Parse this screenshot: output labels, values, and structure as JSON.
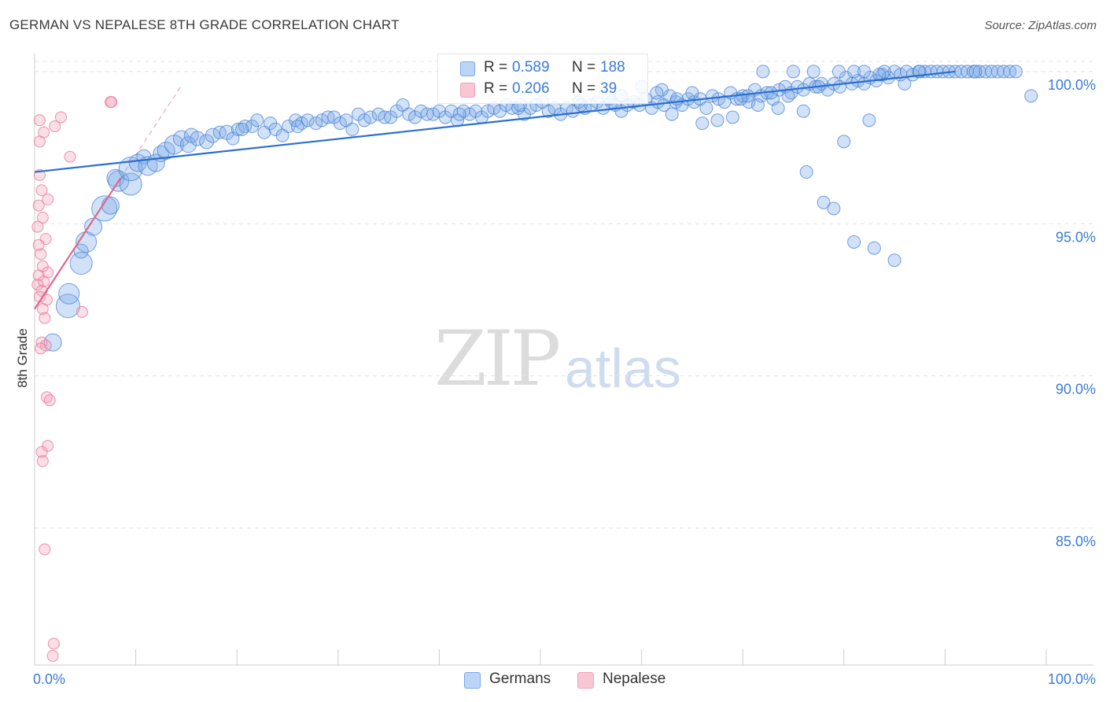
{
  "title": "GERMAN VS NEPALESE 8TH GRADE CORRELATION CHART",
  "source": "Source: ZipAtlas.com",
  "watermark": {
    "left": "ZIP",
    "right": "atlas"
  },
  "legend": {
    "germans": {
      "r_label": "R =",
      "r_value": "0.589",
      "n_label": "N =",
      "n_value": "188"
    },
    "nepalese": {
      "r_label": "R =",
      "r_value": "0.206",
      "n_label": "N =",
      "n_value": "39"
    }
  },
  "bottom_legend": {
    "germans": "Germans",
    "nepalese": "Nepalese"
  },
  "colors": {
    "blue": "#7aa9e8",
    "blue_line": "#2a6fcf",
    "pink": "#f0a3b9",
    "pink_line": "#e0668e",
    "tick_label": "#3a7bd5"
  },
  "chart_data": {
    "type": "scatter",
    "title": "GERMAN VS NEPALESE 8TH GRADE CORRELATION CHART",
    "xlabel": "",
    "ylabel": "8th Grade",
    "xlim": [
      0,
      100
    ],
    "ylim": [
      80.5,
      100.8
    ],
    "x_tick_labels": {
      "left": "0.0%",
      "right": "100.0%"
    },
    "y_ticks": [
      {
        "value": 100,
        "label": "100.0%"
      },
      {
        "value": 95,
        "label": "95.0%"
      },
      {
        "value": 90,
        "label": "90.0%"
      },
      {
        "value": 85,
        "label": "85.0%"
      }
    ],
    "series": [
      {
        "name": "Germans",
        "trend": {
          "x": [
            0,
            91
          ],
          "y": [
            96.7,
            100.0
          ]
        },
        "points": [
          [
            1.8,
            91.1,
            11
          ],
          [
            3.3,
            92.3,
            15
          ],
          [
            3.4,
            92.7,
            13
          ],
          [
            4.6,
            93.7,
            14
          ],
          [
            4.6,
            94.1,
            9
          ],
          [
            5.1,
            94.4,
            13
          ],
          [
            5.8,
            94.9,
            11
          ],
          [
            6.9,
            95.5,
            16
          ],
          [
            7.5,
            95.6,
            11
          ],
          [
            8.0,
            96.5,
            11
          ],
          [
            8.3,
            96.4,
            13
          ],
          [
            9.5,
            96.3,
            14
          ],
          [
            9.5,
            96.8,
            15
          ],
          [
            10.2,
            97.0,
            11
          ],
          [
            10.8,
            97.2,
            9
          ],
          [
            11.2,
            96.9,
            12
          ],
          [
            12.0,
            97.0,
            11
          ],
          [
            12.5,
            97.3,
            10
          ],
          [
            13.0,
            97.4,
            11
          ],
          [
            13.8,
            97.6,
            12
          ],
          [
            14.5,
            97.8,
            10
          ],
          [
            15.2,
            97.6,
            10
          ],
          [
            15.5,
            97.9,
            9
          ],
          [
            16.1,
            97.8,
            9
          ],
          [
            17.0,
            97.7,
            9
          ],
          [
            17.6,
            97.9,
            9
          ],
          [
            18.3,
            98.0,
            8
          ],
          [
            19.0,
            98.0,
            9
          ],
          [
            19.6,
            97.8,
            8
          ],
          [
            20.1,
            98.1,
            8
          ],
          [
            20.8,
            98.2,
            8
          ],
          [
            21.5,
            98.2,
            8
          ],
          [
            22.0,
            98.4,
            8
          ],
          [
            22.7,
            98.0,
            8
          ],
          [
            23.3,
            98.3,
            8
          ],
          [
            23.8,
            98.1,
            8
          ],
          [
            24.5,
            97.9,
            8
          ],
          [
            25.1,
            98.2,
            8
          ],
          [
            25.8,
            98.4,
            8
          ],
          [
            26.4,
            98.3,
            8
          ],
          [
            27.0,
            98.4,
            8
          ],
          [
            27.8,
            98.3,
            8
          ],
          [
            28.4,
            98.4,
            8
          ],
          [
            29.0,
            98.5,
            8
          ],
          [
            29.6,
            98.5,
            8
          ],
          [
            30.2,
            98.3,
            8
          ],
          [
            30.8,
            98.4,
            8
          ],
          [
            31.4,
            98.1,
            8
          ],
          [
            32.0,
            98.6,
            8
          ],
          [
            32.6,
            98.4,
            8
          ],
          [
            33.2,
            98.5,
            8
          ],
          [
            34.0,
            98.6,
            8
          ],
          [
            34.6,
            98.5,
            8
          ],
          [
            35.2,
            98.5,
            8
          ],
          [
            35.8,
            98.7,
            8
          ],
          [
            36.4,
            98.9,
            8
          ],
          [
            37.0,
            98.6,
            8
          ],
          [
            37.6,
            98.5,
            8
          ],
          [
            38.2,
            98.7,
            8
          ],
          [
            38.8,
            98.6,
            8
          ],
          [
            39.4,
            98.6,
            8
          ],
          [
            40.0,
            98.7,
            8
          ],
          [
            40.6,
            98.5,
            8
          ],
          [
            41.2,
            98.7,
            8
          ],
          [
            41.8,
            98.4,
            8
          ],
          [
            42.4,
            98.7,
            8
          ],
          [
            43.0,
            98.6,
            8
          ],
          [
            43.6,
            98.7,
            8
          ],
          [
            44.2,
            98.5,
            8
          ],
          [
            44.8,
            98.7,
            8
          ],
          [
            45.4,
            98.8,
            8
          ],
          [
            46.0,
            98.7,
            8
          ],
          [
            46.6,
            98.9,
            8
          ],
          [
            47.2,
            98.8,
            8
          ],
          [
            47.8,
            98.8,
            8
          ],
          [
            48.4,
            98.6,
            8
          ],
          [
            49.0,
            98.8,
            8
          ],
          [
            49.6,
            98.9,
            8
          ],
          [
            50.2,
            99.0,
            8
          ],
          [
            50.8,
            98.7,
            8
          ],
          [
            51.4,
            98.8,
            8
          ],
          [
            52.0,
            98.6,
            8
          ],
          [
            52.6,
            98.8,
            8
          ],
          [
            53.2,
            98.7,
            8
          ],
          [
            53.8,
            99.0,
            8
          ],
          [
            54.4,
            98.8,
            8
          ],
          [
            55.0,
            98.9,
            8
          ],
          [
            55.6,
            99.0,
            8
          ],
          [
            56.2,
            98.8,
            8
          ],
          [
            56.8,
            99.1,
            8
          ],
          [
            57.4,
            98.9,
            8
          ],
          [
            58.0,
            98.7,
            8
          ],
          [
            58.6,
            98.9,
            8
          ],
          [
            59.2,
            99.0,
            8
          ],
          [
            59.8,
            98.9,
            8
          ],
          [
            60.4,
            99.1,
            8
          ],
          [
            61.0,
            98.8,
            8
          ],
          [
            61.6,
            99.0,
            8
          ],
          [
            62.2,
            98.9,
            8
          ],
          [
            62.8,
            99.2,
            8
          ],
          [
            63.4,
            99.0,
            8
          ],
          [
            64.0,
            98.9,
            8
          ],
          [
            64.6,
            99.1,
            8
          ],
          [
            65.2,
            99.0,
            8
          ],
          [
            65.8,
            99.1,
            8
          ],
          [
            66.4,
            98.8,
            8
          ],
          [
            67.0,
            99.2,
            8
          ],
          [
            67.6,
            99.1,
            8
          ],
          [
            68.2,
            99.0,
            8
          ],
          [
            68.8,
            99.3,
            8
          ],
          [
            69.4,
            99.1,
            8
          ],
          [
            70.0,
            99.2,
            8
          ],
          [
            70.6,
            99.0,
            8
          ],
          [
            71.2,
            99.4,
            8
          ],
          [
            71.8,
            99.2,
            8
          ],
          [
            72.4,
            99.3,
            8
          ],
          [
            73.0,
            99.1,
            8
          ],
          [
            73.6,
            99.4,
            8
          ],
          [
            74.2,
            99.5,
            8
          ],
          [
            74.8,
            99.3,
            8
          ],
          [
            75.4,
            99.5,
            8
          ],
          [
            76.0,
            99.4,
            8
          ],
          [
            76.6,
            99.6,
            8
          ],
          [
            77.2,
            99.5,
            8
          ],
          [
            77.8,
            99.6,
            8
          ],
          [
            78.4,
            99.4,
            8
          ],
          [
            79.0,
            99.6,
            8
          ],
          [
            79.6,
            99.5,
            8
          ],
          [
            80.2,
            99.8,
            8
          ],
          [
            80.8,
            99.6,
            8
          ],
          [
            81.4,
            99.7,
            8
          ],
          [
            82.0,
            99.6,
            8
          ],
          [
            82.6,
            99.8,
            8
          ],
          [
            83.2,
            99.7,
            8
          ],
          [
            83.8,
            99.9,
            8
          ],
          [
            84.4,
            99.8,
            8
          ],
          [
            85.0,
            100.0,
            8
          ],
          [
            85.6,
            99.9,
            8
          ],
          [
            86.2,
            100.0,
            8
          ],
          [
            86.8,
            99.9,
            8
          ],
          [
            87.4,
            100.0,
            8
          ],
          [
            88.0,
            100.0,
            8
          ],
          [
            88.6,
            100.0,
            8
          ],
          [
            89.2,
            100.0,
            8
          ],
          [
            89.8,
            100.0,
            8
          ],
          [
            90.4,
            100.0,
            8
          ],
          [
            91.0,
            100.0,
            8
          ],
          [
            91.6,
            100.0,
            8
          ],
          [
            92.2,
            100.0,
            8
          ],
          [
            92.8,
            100.0,
            8
          ],
          [
            93.4,
            100.0,
            8
          ],
          [
            94.0,
            100.0,
            8
          ],
          [
            94.6,
            100.0,
            8
          ],
          [
            95.2,
            100.0,
            8
          ],
          [
            95.8,
            100.0,
            8
          ],
          [
            96.4,
            100.0,
            8
          ],
          [
            97.0,
            100.0,
            8
          ],
          [
            72.0,
            100.0,
            8
          ],
          [
            75.0,
            100.0,
            8
          ],
          [
            77.0,
            100.0,
            8
          ],
          [
            79.5,
            100.0,
            8
          ],
          [
            81.0,
            100.0,
            8
          ],
          [
            82.0,
            100.0,
            8
          ],
          [
            60.0,
            99.5,
            8
          ],
          [
            62.0,
            99.4,
            8
          ],
          [
            58.0,
            99.2,
            8
          ],
          [
            98.5,
            99.2,
            8
          ],
          [
            86.0,
            99.6,
            8
          ],
          [
            63.0,
            98.6,
            8
          ],
          [
            66.0,
            98.3,
            8
          ],
          [
            67.5,
            98.4,
            8
          ],
          [
            69.0,
            98.5,
            8
          ],
          [
            71.5,
            98.9,
            8
          ],
          [
            73.5,
            98.8,
            8
          ],
          [
            74.5,
            99.2,
            8
          ],
          [
            76.0,
            98.7,
            8
          ],
          [
            82.5,
            98.4,
            8
          ],
          [
            76.3,
            96.7,
            8
          ],
          [
            78.0,
            95.7,
            8
          ],
          [
            79.0,
            95.5,
            8
          ],
          [
            81.0,
            94.4,
            8
          ],
          [
            83.0,
            94.2,
            8
          ],
          [
            85.0,
            93.8,
            8
          ],
          [
            80.0,
            97.7,
            8
          ],
          [
            65.0,
            99.3,
            8
          ],
          [
            61.5,
            99.3,
            8
          ],
          [
            70.5,
            99.2,
            8
          ],
          [
            72.8,
            99.3,
            8
          ],
          [
            84.0,
            100.0,
            8
          ],
          [
            20.5,
            98.1,
            8
          ],
          [
            26.0,
            98.2,
            8
          ],
          [
            42.0,
            98.6,
            8
          ],
          [
            48.0,
            98.9,
            8
          ],
          [
            54.0,
            98.9,
            8
          ],
          [
            57.0,
            99.0,
            8
          ],
          [
            63.5,
            99.1,
            8
          ],
          [
            69.8,
            99.1,
            8
          ],
          [
            77.5,
            99.5,
            8
          ],
          [
            83.5,
            99.9,
            8
          ],
          [
            87.5,
            100.0,
            8
          ],
          [
            93.0,
            100.0,
            8
          ]
        ]
      },
      {
        "name": "Nepalese",
        "trend": {
          "x": [
            0,
            8.5
          ],
          "y": [
            92.2,
            96.5
          ]
        },
        "points": [
          [
            0.5,
            98.4
          ],
          [
            0.9,
            98.0
          ],
          [
            0.5,
            97.7
          ],
          [
            2.0,
            98.2
          ],
          [
            2.6,
            98.5
          ],
          [
            3.5,
            97.2
          ],
          [
            0.5,
            96.6
          ],
          [
            0.7,
            96.1
          ],
          [
            1.3,
            95.8
          ],
          [
            0.4,
            95.6
          ],
          [
            0.8,
            95.2
          ],
          [
            0.3,
            94.9
          ],
          [
            1.1,
            94.5
          ],
          [
            0.4,
            94.3
          ],
          [
            0.6,
            94.0
          ],
          [
            0.8,
            93.6
          ],
          [
            1.3,
            93.4
          ],
          [
            0.4,
            93.3
          ],
          [
            0.9,
            93.1
          ],
          [
            0.3,
            93.0
          ],
          [
            0.7,
            92.8
          ],
          [
            0.5,
            92.6
          ],
          [
            1.2,
            92.5
          ],
          [
            0.8,
            92.2
          ],
          [
            4.7,
            92.1
          ],
          [
            1.0,
            91.9
          ],
          [
            0.7,
            91.1
          ],
          [
            1.1,
            91.0
          ],
          [
            0.6,
            90.9
          ],
          [
            1.2,
            89.3
          ],
          [
            1.5,
            89.2
          ],
          [
            1.3,
            87.7
          ],
          [
            0.7,
            87.5
          ],
          [
            0.8,
            87.2
          ],
          [
            1.0,
            84.3
          ],
          [
            1.9,
            81.2
          ],
          [
            1.8,
            80.8
          ],
          [
            7.5,
            99.0
          ],
          [
            7.6,
            99.0
          ]
        ]
      }
    ]
  }
}
